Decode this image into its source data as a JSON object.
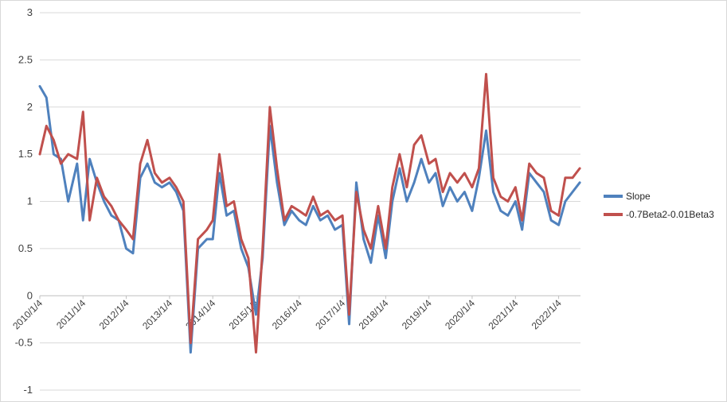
{
  "chart_data": {
    "type": "line",
    "title": "",
    "xlabel": "",
    "ylabel": "",
    "ylim": [
      -1,
      3
    ],
    "yticks": [
      -1,
      -0.5,
      0,
      0.5,
      1,
      1.5,
      2,
      2.5,
      3
    ],
    "ytick_labels": [
      "-1",
      "-0.5",
      "0",
      "0.5",
      "1",
      "1.5",
      "2",
      "2.5",
      "3"
    ],
    "xticks": [
      "2010/1/4",
      "2011/1/4",
      "2012/1/4",
      "2013/1/4",
      "2014/1/4",
      "2015/1/4",
      "2016/1/4",
      "2017/1/4",
      "2018/1/4",
      "2019/1/4",
      "2020/1/4",
      "2021/1/4",
      "2022/1/4"
    ],
    "grid": "horizontal",
    "legend_position": "right",
    "x": [
      "2010-01-04",
      "2010-03-01",
      "2010-05-01",
      "2010-07-01",
      "2010-09-01",
      "2010-11-15",
      "2011-01-04",
      "2011-03-01",
      "2011-05-01",
      "2011-07-01",
      "2011-09-01",
      "2011-11-01",
      "2012-01-04",
      "2012-03-01",
      "2012-05-01",
      "2012-07-01",
      "2012-09-01",
      "2012-11-01",
      "2013-01-04",
      "2013-03-01",
      "2013-05-01",
      "2013-07-01",
      "2013-09-01",
      "2013-11-15",
      "2014-01-04",
      "2014-03-01",
      "2014-05-01",
      "2014-07-01",
      "2014-09-01",
      "2014-11-01",
      "2015-01-04",
      "2015-03-01",
      "2015-05-01",
      "2015-07-01",
      "2015-09-01",
      "2015-11-01",
      "2016-01-04",
      "2016-03-01",
      "2016-05-01",
      "2016-07-01",
      "2016-09-01",
      "2016-11-01",
      "2017-01-04",
      "2017-03-01",
      "2017-05-01",
      "2017-07-01",
      "2017-09-01",
      "2017-11-01",
      "2018-01-04",
      "2018-03-01",
      "2018-05-01",
      "2018-07-01",
      "2018-09-01",
      "2018-11-01",
      "2019-01-04",
      "2019-03-01",
      "2019-05-01",
      "2019-07-01",
      "2019-09-01",
      "2019-11-01",
      "2020-01-04",
      "2020-03-01",
      "2020-05-01",
      "2020-07-01",
      "2020-09-01",
      "2020-11-01",
      "2021-01-04",
      "2021-03-01",
      "2021-05-01",
      "2021-07-01",
      "2021-09-01",
      "2021-11-01",
      "2022-01-04",
      "2022-03-01",
      "2022-05-01",
      "2022-07-01"
    ],
    "series": [
      {
        "name": "Slope",
        "color": "#4f81bd",
        "values": [
          2.22,
          2.1,
          1.5,
          1.45,
          1.0,
          1.4,
          0.8,
          1.45,
          1.2,
          1.0,
          0.85,
          0.8,
          0.5,
          0.45,
          1.25,
          1.4,
          1.2,
          1.15,
          1.2,
          1.1,
          0.9,
          -0.6,
          0.5,
          0.6,
          0.6,
          1.3,
          0.85,
          0.9,
          0.5,
          0.3,
          -0.2,
          0.4,
          1.8,
          1.2,
          0.75,
          0.9,
          0.8,
          0.75,
          0.95,
          0.8,
          0.85,
          0.7,
          0.75,
          -0.3,
          1.2,
          0.6,
          0.35,
          0.85,
          0.4,
          1.0,
          1.35,
          1.0,
          1.2,
          1.45,
          1.2,
          1.3,
          0.95,
          1.15,
          1.0,
          1.1,
          0.9,
          1.25,
          1.75,
          1.1,
          0.9,
          0.85,
          1.0,
          0.7,
          1.3,
          1.2,
          1.1,
          0.8,
          0.75,
          1.0,
          1.1,
          1.2
        ]
      },
      {
        "name": "-0.7Beta2-0.01Beta3",
        "color": "#c0504d",
        "values": [
          1.5,
          1.8,
          1.65,
          1.4,
          1.5,
          1.45,
          1.95,
          0.8,
          1.25,
          1.05,
          0.95,
          0.8,
          0.7,
          0.6,
          1.4,
          1.65,
          1.3,
          1.2,
          1.25,
          1.15,
          1.0,
          -0.5,
          0.6,
          0.7,
          0.8,
          1.5,
          0.95,
          1.0,
          0.6,
          0.4,
          -0.6,
          0.5,
          2.0,
          1.35,
          0.8,
          0.95,
          0.9,
          0.85,
          1.05,
          0.85,
          0.9,
          0.8,
          0.85,
          -0.2,
          1.1,
          0.7,
          0.5,
          0.95,
          0.5,
          1.15,
          1.5,
          1.15,
          1.6,
          1.7,
          1.4,
          1.45,
          1.1,
          1.3,
          1.2,
          1.3,
          1.15,
          1.35,
          2.35,
          1.25,
          1.05,
          1.0,
          1.15,
          0.8,
          1.4,
          1.3,
          1.25,
          0.9,
          0.85,
          1.25,
          1.25,
          1.35
        ]
      }
    ]
  }
}
